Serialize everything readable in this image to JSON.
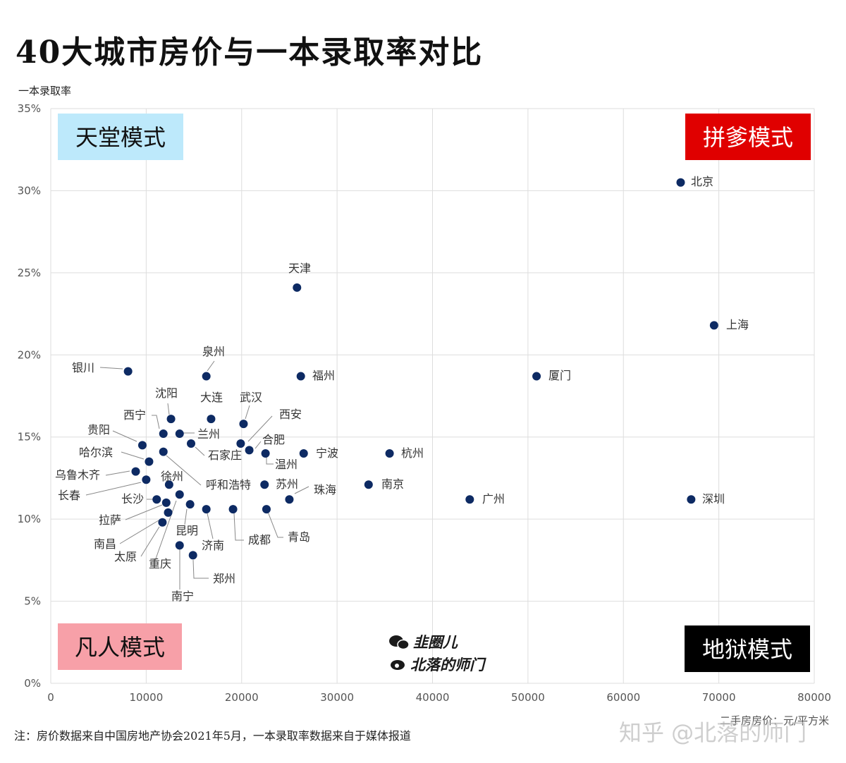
{
  "title": "40大城市房价与一本录取率对比",
  "note": "注：房价数据来自中国房地产协会2021年5月，一本录取率数据来自于媒体报道",
  "watermark": "知乎 @北落的师门",
  "logos": [
    "韭圈儿",
    "北落的师门"
  ],
  "colors": {
    "point": "#0d2a63",
    "heaven": "#bde9fb",
    "pdd": "#e00000",
    "hell": "#000000",
    "mortal": "#f7a0a8",
    "grid": "#dddddd"
  },
  "chart_data": {
    "type": "scatter",
    "ylabel": "一本录取率",
    "xlabel": "二手房房价：元/平方米",
    "xlim": [
      0,
      80000
    ],
    "ylim": [
      0,
      35
    ],
    "x_ticks": [
      "0",
      "10000",
      "20000",
      "30000",
      "40000",
      "50000",
      "60000",
      "70000",
      "80000"
    ],
    "y_ticks": [
      "0%",
      "5%",
      "10%",
      "15%",
      "20%",
      "25%",
      "30%",
      "35%"
    ],
    "grid": true,
    "quadrants": [
      {
        "label": "天堂模式",
        "position": "top-left"
      },
      {
        "label": "拼爹模式",
        "position": "top-right"
      },
      {
        "label": "凡人模式",
        "position": "bottom-left"
      },
      {
        "label": "地狱模式",
        "position": "bottom-right"
      }
    ],
    "points": [
      {
        "city": "北京",
        "x": 66000,
        "y": 30.5
      },
      {
        "city": "上海",
        "x": 69500,
        "y": 21.8
      },
      {
        "city": "深圳",
        "x": 67100,
        "y": 11.2
      },
      {
        "city": "厦门",
        "x": 50900,
        "y": 18.7
      },
      {
        "city": "广州",
        "x": 43900,
        "y": 11.2
      },
      {
        "city": "天津",
        "x": 25800,
        "y": 24.1
      },
      {
        "city": "福州",
        "x": 26200,
        "y": 18.7
      },
      {
        "city": "杭州",
        "x": 35500,
        "y": 14.0
      },
      {
        "city": "南京",
        "x": 33300,
        "y": 12.1
      },
      {
        "city": "宁波",
        "x": 26500,
        "y": 14.0
      },
      {
        "city": "珠海",
        "x": 25000,
        "y": 11.2
      },
      {
        "city": "苏州",
        "x": 22400,
        "y": 12.1
      },
      {
        "city": "温州",
        "x": 22500,
        "y": 14.0
      },
      {
        "city": "合肥",
        "x": 20800,
        "y": 14.2
      },
      {
        "city": "西安",
        "x": 19900,
        "y": 14.6
      },
      {
        "city": "武汉",
        "x": 20200,
        "y": 15.8
      },
      {
        "city": "泉州",
        "x": 16300,
        "y": 18.7
      },
      {
        "city": "大连",
        "x": 16800,
        "y": 16.1
      },
      {
        "city": "银川",
        "x": 8100,
        "y": 19.0
      },
      {
        "city": "沈阳",
        "x": 12600,
        "y": 16.1
      },
      {
        "city": "西宁",
        "x": 11800,
        "y": 15.2
      },
      {
        "city": "兰州",
        "x": 13500,
        "y": 15.2
      },
      {
        "city": "石家庄",
        "x": 14700,
        "y": 14.6
      },
      {
        "city": "贵阳",
        "x": 9600,
        "y": 14.5
      },
      {
        "city": "哈尔滨",
        "x": 10300,
        "y": 13.5
      },
      {
        "city": "乌鲁木齐",
        "x": 8900,
        "y": 12.9
      },
      {
        "city": "长春",
        "x": 10000,
        "y": 12.4
      },
      {
        "city": "呼和浩特",
        "x": 11800,
        "y": 14.1
      },
      {
        "city": "徐州",
        "x": 12400,
        "y": 12.1
      },
      {
        "city": "长沙",
        "x": 11100,
        "y": 11.2
      },
      {
        "city": "拉萨",
        "x": 12100,
        "y": 11.0
      },
      {
        "city": "南昌",
        "x": 12300,
        "y": 10.4
      },
      {
        "city": "太原",
        "x": 11700,
        "y": 9.8
      },
      {
        "city": "重庆",
        "x": 13500,
        "y": 11.5
      },
      {
        "city": "昆明",
        "x": 14600,
        "y": 10.9
      },
      {
        "city": "济南",
        "x": 16300,
        "y": 10.6
      },
      {
        "city": "成都",
        "x": 19100,
        "y": 10.6
      },
      {
        "city": "青岛",
        "x": 22600,
        "y": 10.6
      },
      {
        "city": "南宁",
        "x": 13500,
        "y": 8.4
      },
      {
        "city": "郑州",
        "x": 14900,
        "y": 7.8
      }
    ]
  }
}
